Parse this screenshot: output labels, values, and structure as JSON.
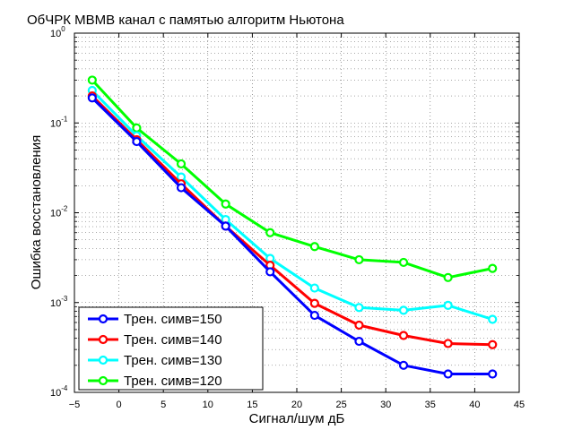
{
  "chart_data": {
    "type": "line",
    "title": "ОбЧРК МВМВ канал с памятью алгоритм Ньютона",
    "xlabel": "Сигнал/шум дБ",
    "ylabel": "Ошибка восстановления",
    "xlim": [
      -5,
      45
    ],
    "ylim": [
      0.0001,
      1
    ],
    "yscale": "log",
    "grid": true,
    "legend_position": "bottom-left",
    "x_ticks": [
      "−5",
      "0",
      "5",
      "10",
      "15",
      "20",
      "25",
      "30",
      "35",
      "40",
      "45"
    ],
    "y_ticks": [
      {
        "base": "10",
        "exp": "0"
      },
      {
        "base": "10",
        "exp": "-1"
      },
      {
        "base": "10",
        "exp": "-2"
      },
      {
        "base": "10",
        "exp": "-3"
      },
      {
        "base": "10",
        "exp": "-4"
      }
    ],
    "x": [
      -3,
      2,
      7,
      12,
      17,
      22,
      27,
      32,
      37,
      42
    ],
    "series": [
      {
        "name": "Трен. симв=150",
        "color": "#0000ff",
        "values": [
          0.19,
          0.062,
          0.019,
          0.0071,
          0.0022,
          0.00072,
          0.00037,
          0.0002,
          0.00016,
          0.00016
        ]
      },
      {
        "name": "Трен. симв=140",
        "color": "#ff0000",
        "values": [
          0.2,
          0.065,
          0.021,
          0.0071,
          0.0026,
          0.00098,
          0.00056,
          0.00043,
          0.00035,
          0.00034
        ]
      },
      {
        "name": "Трен. симв=130",
        "color": "#00ffff",
        "values": [
          0.23,
          0.072,
          0.025,
          0.0084,
          0.0031,
          0.00145,
          0.00088,
          0.00082,
          0.00093,
          0.00065
        ]
      },
      {
        "name": "Трен. симв=120",
        "color": "#00ff00",
        "values": [
          0.3,
          0.088,
          0.035,
          0.0125,
          0.006,
          0.0042,
          0.003,
          0.0028,
          0.0019,
          0.0024
        ]
      }
    ]
  }
}
